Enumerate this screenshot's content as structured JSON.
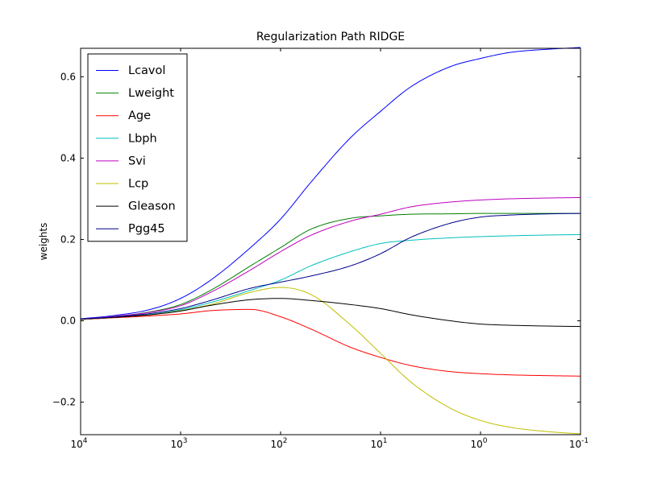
{
  "chart_data": {
    "type": "line",
    "title": "Regularization Path RIDGE",
    "xlabel": "",
    "ylabel": "weights",
    "x_scale": "log",
    "x_direction": "decreasing",
    "xlim": [
      10000,
      0.1
    ],
    "ylim": [
      -0.28,
      0.67
    ],
    "grid": false,
    "legend_position": "top-left",
    "x_ticks": [
      {
        "value": 10000,
        "base": "10",
        "exp": "4"
      },
      {
        "value": 1000,
        "base": "10",
        "exp": "3"
      },
      {
        "value": 100,
        "base": "10",
        "exp": "2"
      },
      {
        "value": 10,
        "base": "10",
        "exp": "1"
      },
      {
        "value": 1,
        "base": "10",
        "exp": "0"
      },
      {
        "value": 0.1,
        "base": "10",
        "exp": "-1"
      }
    ],
    "y_ticks": [
      {
        "value": -0.2,
        "label": "−0.2"
      },
      {
        "value": 0.0,
        "label": "0.0"
      },
      {
        "value": 0.2,
        "label": "0.2"
      },
      {
        "value": 0.4,
        "label": "0.4"
      },
      {
        "value": 0.6,
        "label": "0.6"
      }
    ],
    "x": [
      10000,
      5000,
      2000,
      1000,
      500,
      200,
      100,
      50,
      20,
      10,
      5,
      2,
      1,
      0.5,
      0.2,
      0.1
    ],
    "series": [
      {
        "name": "Lcavol",
        "color": "#0000ff",
        "values": [
          0.005,
          0.012,
          0.028,
          0.055,
          0.1,
          0.18,
          0.25,
          0.34,
          0.45,
          0.515,
          0.575,
          0.625,
          0.645,
          0.66,
          0.668,
          0.672
        ]
      },
      {
        "name": "Lweight",
        "color": "#008000",
        "values": [
          0.004,
          0.01,
          0.022,
          0.04,
          0.075,
          0.135,
          0.18,
          0.225,
          0.252,
          0.258,
          0.262,
          0.263,
          0.264,
          0.264,
          0.264,
          0.264
        ]
      },
      {
        "name": "Age",
        "color": "#ff0000",
        "values": [
          0.003,
          0.007,
          0.012,
          0.017,
          0.025,
          0.028,
          0.01,
          -0.02,
          -0.065,
          -0.09,
          -0.11,
          -0.125,
          -0.13,
          -0.133,
          -0.135,
          -0.136
        ]
      },
      {
        "name": "Lbph",
        "color": "#00bfbf",
        "values": [
          0.004,
          0.008,
          0.016,
          0.027,
          0.045,
          0.075,
          0.1,
          0.135,
          0.17,
          0.19,
          0.198,
          0.204,
          0.207,
          0.209,
          0.211,
          0.212
        ]
      },
      {
        "name": "Svi",
        "color": "#bf00bf",
        "values": [
          0.004,
          0.01,
          0.021,
          0.037,
          0.07,
          0.125,
          0.17,
          0.21,
          0.245,
          0.262,
          0.28,
          0.292,
          0.297,
          0.3,
          0.302,
          0.303
        ]
      },
      {
        "name": "Lcp",
        "color": "#bfbf00",
        "values": [
          0.003,
          0.008,
          0.015,
          0.025,
          0.04,
          0.07,
          0.082,
          0.065,
          -0.01,
          -0.08,
          -0.15,
          -0.215,
          -0.245,
          -0.262,
          -0.273,
          -0.278
        ]
      },
      {
        "name": "Gleason",
        "color": "#000000",
        "values": [
          0.004,
          0.008,
          0.015,
          0.024,
          0.038,
          0.052,
          0.055,
          0.05,
          0.04,
          0.03,
          0.015,
          0.0,
          -0.008,
          -0.011,
          -0.013,
          -0.014
        ]
      },
      {
        "name": "Pgg45",
        "color": "#00008b",
        "values": [
          0.004,
          0.009,
          0.018,
          0.03,
          0.05,
          0.08,
          0.095,
          0.11,
          0.135,
          0.165,
          0.205,
          0.24,
          0.255,
          0.26,
          0.263,
          0.264
        ]
      }
    ]
  }
}
